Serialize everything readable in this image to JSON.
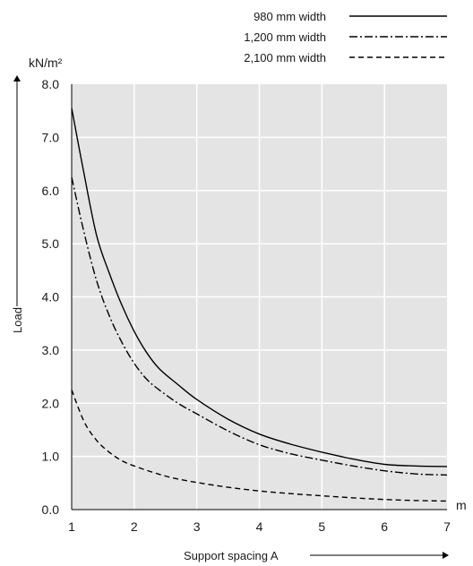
{
  "chart_data": {
    "type": "line",
    "title": "",
    "xlabel": "Support spacing A",
    "ylabel": "Load",
    "x_unit": "m",
    "y_unit": "kN/m²",
    "xlim": [
      1,
      7
    ],
    "ylim": [
      0,
      8
    ],
    "x_ticks": [
      "1",
      "2",
      "3",
      "4",
      "5",
      "6",
      "7"
    ],
    "y_ticks": [
      "0.0",
      "1.0",
      "2.0",
      "3.0",
      "4.0",
      "5.0",
      "6.0",
      "7.0",
      "8.0"
    ],
    "grid": true,
    "legend_position": "top-right",
    "plot_background": "#e4e4e4",
    "grid_color": "#ffffff",
    "series": [
      {
        "name": "980 mm width",
        "dash": "solid",
        "color": "#000000",
        "x": [
          1.0,
          1.2,
          1.4,
          1.6,
          1.8,
          2.0,
          2.2,
          2.4,
          2.7,
          3.0,
          3.5,
          4.0,
          4.5,
          5.0,
          5.5,
          6.0,
          6.5,
          7.0
        ],
        "y": [
          7.55,
          6.3,
          5.15,
          4.45,
          3.85,
          3.35,
          2.95,
          2.65,
          2.35,
          2.07,
          1.7,
          1.42,
          1.23,
          1.08,
          0.95,
          0.85,
          0.82,
          0.81
        ]
      },
      {
        "name": "1,200 mm width",
        "dash": "dashdot",
        "color": "#000000",
        "x": [
          1.0,
          1.2,
          1.4,
          1.6,
          1.8,
          2.0,
          2.2,
          2.4,
          2.7,
          3.0,
          3.5,
          4.0,
          4.5,
          5.0,
          5.5,
          6.0,
          6.5,
          7.0
        ],
        "y": [
          6.25,
          5.2,
          4.3,
          3.65,
          3.15,
          2.75,
          2.45,
          2.25,
          2.0,
          1.8,
          1.48,
          1.22,
          1.05,
          0.93,
          0.82,
          0.73,
          0.67,
          0.65
        ]
      },
      {
        "name": "2,100 mm width",
        "dash": "dashed",
        "color": "#000000",
        "x": [
          1.0,
          1.2,
          1.4,
          1.6,
          1.8,
          2.0,
          2.3,
          2.6,
          3.0,
          3.5,
          4.0,
          4.5,
          5.0,
          5.5,
          6.0,
          6.5,
          7.0
        ],
        "y": [
          2.25,
          1.65,
          1.3,
          1.08,
          0.92,
          0.82,
          0.7,
          0.6,
          0.51,
          0.42,
          0.35,
          0.3,
          0.26,
          0.22,
          0.19,
          0.17,
          0.16
        ]
      }
    ]
  }
}
